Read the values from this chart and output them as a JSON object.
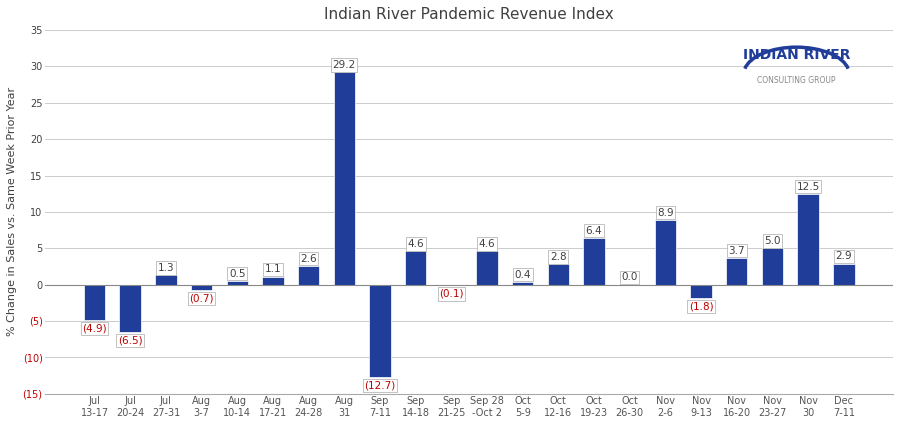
{
  "title": "Indian River Pandemic Revenue Index",
  "ylabel": "% Change in Sales vs. Same Week Prior Year",
  "categories": [
    "Jul\n13-17",
    "Jul\n20-24",
    "Jul\n27-31",
    "Aug\n3-7",
    "Aug\n10-14",
    "Aug\n17-21",
    "Aug\n24-28",
    "Aug\n31",
    "Sep\n7-11",
    "Sep\n14-18",
    "Sep\n21-25",
    "Sep 28\n-Oct 2",
    "Oct\n5-9",
    "Oct\n12-16",
    "Oct\n19-23",
    "Oct\n26-30",
    "Nov\n2-6",
    "Nov\n9-13",
    "Nov\n16-20",
    "Nov\n23-27",
    "Nov\n30",
    "Dec\n7-11"
  ],
  "values": [
    -4.9,
    -6.5,
    1.3,
    -0.7,
    0.5,
    1.1,
    2.6,
    29.2,
    -12.7,
    4.6,
    -0.1,
    4.6,
    0.4,
    2.8,
    6.4,
    0.0,
    8.9,
    -1.8,
    3.7,
    5.0,
    12.5,
    2.9
  ],
  "bar_color": "#1F3D99",
  "label_color_positive": "#404040",
  "label_color_negative": "#C00000",
  "ylim": [
    -15,
    35
  ],
  "yticks": [
    -15,
    -10,
    -5,
    0,
    5,
    10,
    15,
    20,
    25,
    30,
    35
  ],
  "background_color": "#FFFFFF",
  "grid_color": "#CCCCCC",
  "title_fontsize": 11,
  "label_fontsize": 7.5,
  "tick_fontsize": 7,
  "ylabel_fontsize": 8
}
